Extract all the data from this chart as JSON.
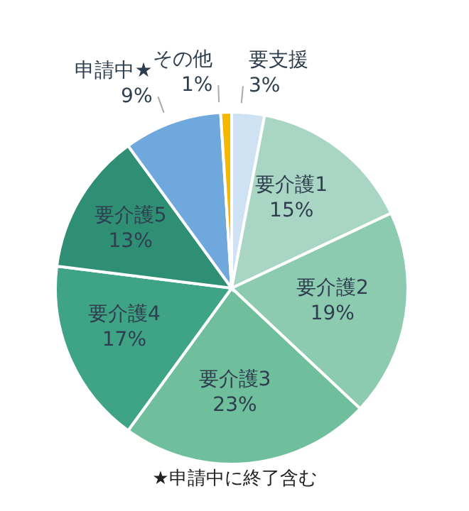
{
  "chart_data": {
    "type": "pie",
    "categories": [
      "要支援",
      "要介護1",
      "要介護2",
      "要介護3",
      "要介護4",
      "要介護5",
      "申請中★",
      "その他"
    ],
    "values": [
      3,
      15,
      19,
      23,
      17,
      13,
      9,
      1
    ],
    "value_labels": [
      "3%",
      "15%",
      "19%",
      "23%",
      "17%",
      "13%",
      "9%",
      "1%"
    ],
    "colors": [
      "#cfe2f3",
      "#a9d5c4",
      "#8ccbb0",
      "#6fbf9c",
      "#3fa385",
      "#2e8f74",
      "#6fa8dc",
      "#f5b800"
    ],
    "annotations": [
      "★申請中に終了含む"
    ],
    "legend": false
  }
}
